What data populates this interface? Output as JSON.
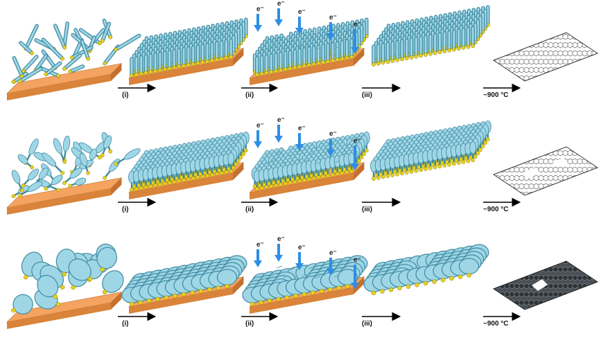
{
  "rows": [
    {
      "id": "row-1",
      "molecule": "rod",
      "steps": [
        "(i)",
        "(ii)",
        "(iii)",
        "~900 °C"
      ]
    },
    {
      "id": "row-2",
      "molecule": "paddle",
      "steps": [
        "(i)",
        "(ii)",
        "(iii)",
        "~900 °C"
      ]
    },
    {
      "id": "row-3",
      "molecule": "disc",
      "steps": [
        "(i)",
        "(ii)",
        "(iii)",
        "~900 °C"
      ]
    }
  ],
  "electron_label": "e⁻",
  "colors": {
    "substrate_top": "#f4a460",
    "substrate_front": "#d9843a",
    "substrate_side": "#c47030",
    "molecule": "#9fd6e6",
    "molecule_dark": "#3e8aa0",
    "head": "#e8d21c",
    "arrow": "#2d8ee6",
    "graphene_light": "#555555",
    "graphene_dark": "#3a3f44"
  },
  "icons": [
    "substrate-icon",
    "molecule-icon",
    "electron-beam-arrow-icon",
    "process-arrow-icon",
    "graphene-sheet-icon"
  ]
}
